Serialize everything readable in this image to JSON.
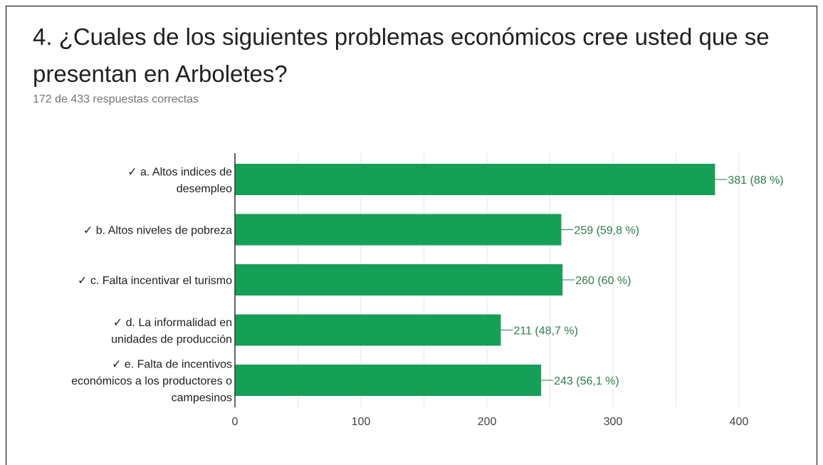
{
  "question": {
    "title": "4. ¿Cuales de los siguientes problemas económicos cree usted que se presentan en Arboletes?",
    "subtitle": "172 de 433 respuestas correctas"
  },
  "colors": {
    "bar": "#169f57",
    "label": "#2e7d4f",
    "axis": "#333333",
    "grid": "#e6e6e6",
    "category_text": "#212121",
    "tick_text": "#444444"
  },
  "chart_data": {
    "type": "bar",
    "orientation": "horizontal",
    "categories": [
      [
        "✓ a. Altos indices de",
        "desempleo"
      ],
      [
        "✓ b. Altos niveles de pobreza"
      ],
      [
        "✓ c. Falta incentivar el turismo"
      ],
      [
        "✓ d. La informalidad en",
        "unidades de producción"
      ],
      [
        "✓ e. Falta de incentivos",
        "económicos a los productores o",
        "campesinos"
      ]
    ],
    "values": [
      381,
      259,
      260,
      211,
      243
    ],
    "data_labels": [
      "381 (88 %)",
      "259 (59,8 %)",
      "260 (60 %)",
      "211 (48,7 %)",
      "243 (56,1 %)"
    ],
    "xlim": [
      0,
      400
    ],
    "xticks": [
      0,
      100,
      200,
      300,
      400
    ],
    "grid": true
  }
}
